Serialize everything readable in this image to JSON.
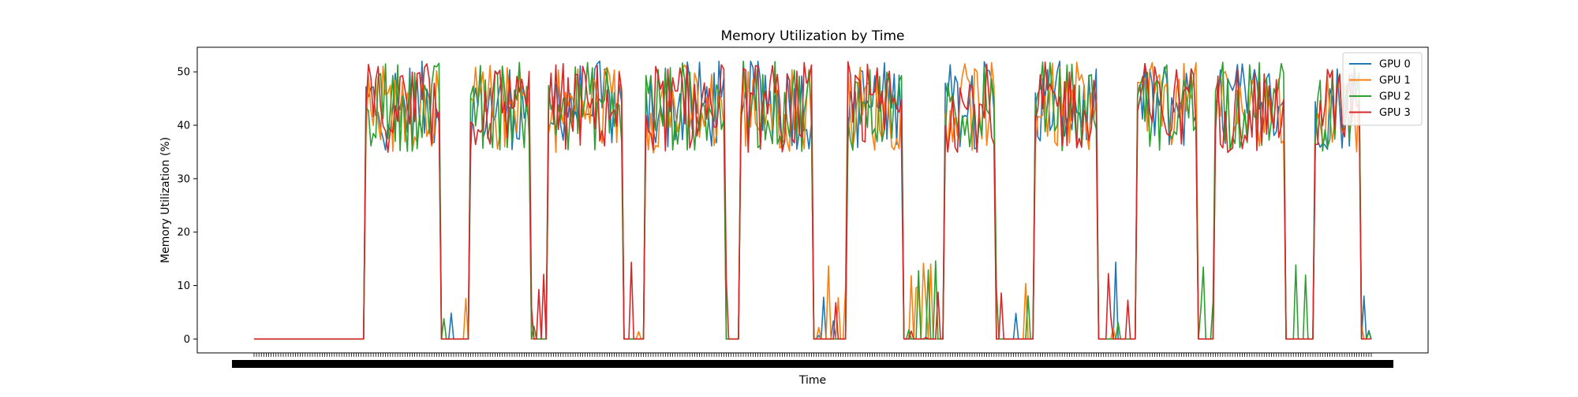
{
  "chart_data": {
    "type": "line",
    "title": "Memory Utilization by Time",
    "xlabel": "Time",
    "ylabel": "Memory Utilization (%)",
    "ylim": [
      -2.6,
      54.6
    ],
    "yticks": [
      0,
      10,
      20,
      30,
      40,
      50
    ],
    "xtick_count": 460,
    "xtick_labels_note": "dense unreadable timestamp labels",
    "grid": false,
    "legend_position": "top-right",
    "series": [
      {
        "name": "GPU 0",
        "color": "#1f77b4",
        "segments": [
          [
            0,
            48,
            "zero"
          ],
          [
            48,
            56,
            "busy"
          ],
          [
            56,
            67,
            "noise"
          ],
          [
            67,
            73,
            "zero"
          ],
          [
            73,
            84,
            "busy"
          ],
          [
            84,
            97,
            "noise"
          ],
          [
            97,
            103,
            "zero"
          ],
          [
            103,
            117,
            "busy"
          ],
          [
            117,
            130,
            "noise"
          ],
          [
            130,
            137,
            "zero"
          ],
          [
            137,
            153,
            "busy"
          ],
          [
            153,
            173,
            "noise"
          ],
          [
            173,
            183,
            "zero"
          ],
          [
            183,
            200,
            "busy"
          ],
          [
            200,
            213,
            "noise"
          ],
          [
            213,
            220,
            "zero"
          ],
          [
            220,
            238,
            "busy"
          ],
          [
            238,
            248,
            "noise"
          ],
          [
            248,
            257,
            "zero"
          ],
          [
            257,
            278,
            "busy"
          ],
          [
            278,
            292,
            "noise"
          ],
          [
            292,
            298,
            "zero"
          ],
          [
            298,
            316,
            "busy"
          ],
          [
            316,
            327,
            "noise"
          ],
          [
            327,
            335,
            "zero"
          ],
          [
            335,
            356,
            "busy"
          ],
          [
            356,
            380,
            "noise"
          ],
          [
            380,
            387,
            "zero"
          ],
          [
            387,
            404,
            "busy"
          ],
          [
            404,
            425,
            "noise"
          ],
          [
            425,
            433,
            "zero"
          ],
          [
            433,
            443,
            "busy"
          ],
          [
            443,
            460,
            "noise"
          ]
        ]
      },
      {
        "name": "GPU 1",
        "color": "#ff7f0e",
        "segments": [
          [
            0,
            48,
            "zero"
          ],
          [
            48,
            56,
            "busy"
          ],
          [
            56,
            67,
            "noise"
          ],
          [
            67,
            73,
            "zero"
          ],
          [
            73,
            84,
            "busy"
          ],
          [
            84,
            97,
            "noise"
          ],
          [
            97,
            103,
            "zero"
          ],
          [
            103,
            117,
            "busy"
          ],
          [
            117,
            130,
            "noise"
          ],
          [
            130,
            137,
            "zero"
          ],
          [
            137,
            153,
            "busy"
          ],
          [
            153,
            173,
            "noise"
          ],
          [
            173,
            183,
            "zero"
          ],
          [
            183,
            200,
            "busy"
          ],
          [
            200,
            213,
            "noise"
          ],
          [
            213,
            220,
            "zero"
          ],
          [
            220,
            238,
            "busy"
          ],
          [
            238,
            248,
            "noise"
          ],
          [
            248,
            257,
            "zero"
          ],
          [
            257,
            278,
            "busy"
          ],
          [
            278,
            292,
            "noise"
          ],
          [
            292,
            298,
            "zero"
          ],
          [
            298,
            316,
            "busy"
          ],
          [
            316,
            327,
            "noise"
          ],
          [
            327,
            335,
            "zero"
          ],
          [
            335,
            356,
            "busy"
          ],
          [
            356,
            380,
            "noise"
          ],
          [
            380,
            387,
            "zero"
          ],
          [
            387,
            404,
            "busy"
          ],
          [
            404,
            425,
            "noise"
          ],
          [
            425,
            433,
            "zero"
          ],
          [
            433,
            443,
            "busy"
          ],
          [
            443,
            460,
            "noise"
          ]
        ]
      },
      {
        "name": "GPU 2",
        "color": "#2ca02c",
        "segments": [
          [
            0,
            48,
            "zero"
          ],
          [
            48,
            56,
            "busy"
          ],
          [
            56,
            67,
            "noise"
          ],
          [
            67,
            73,
            "zero"
          ],
          [
            73,
            84,
            "busy"
          ],
          [
            84,
            97,
            "noise"
          ],
          [
            97,
            103,
            "zero"
          ],
          [
            103,
            117,
            "busy"
          ],
          [
            117,
            130,
            "noise"
          ],
          [
            130,
            137,
            "zero"
          ],
          [
            137,
            153,
            "busy"
          ],
          [
            153,
            173,
            "noise"
          ],
          [
            173,
            183,
            "zero"
          ],
          [
            183,
            200,
            "busy"
          ],
          [
            200,
            213,
            "noise"
          ],
          [
            213,
            220,
            "zero"
          ],
          [
            220,
            238,
            "busy"
          ],
          [
            238,
            248,
            "noise"
          ],
          [
            248,
            257,
            "zero"
          ],
          [
            257,
            278,
            "busy"
          ],
          [
            278,
            292,
            "noise"
          ],
          [
            292,
            298,
            "zero"
          ],
          [
            298,
            316,
            "busy"
          ],
          [
            316,
            327,
            "noise"
          ],
          [
            327,
            335,
            "zero"
          ],
          [
            335,
            356,
            "busy"
          ],
          [
            356,
            380,
            "noise"
          ],
          [
            380,
            387,
            "zero"
          ],
          [
            387,
            404,
            "busy"
          ],
          [
            404,
            425,
            "noise"
          ],
          [
            425,
            433,
            "zero"
          ],
          [
            433,
            443,
            "busy"
          ],
          [
            443,
            460,
            "noise"
          ]
        ]
      },
      {
        "name": "GPU 3",
        "color": "#d62728",
        "segments": [
          [
            0,
            48,
            "zero"
          ],
          [
            48,
            56,
            "busy"
          ],
          [
            56,
            67,
            "noise"
          ],
          [
            67,
            73,
            "zero"
          ],
          [
            73,
            84,
            "busy"
          ],
          [
            84,
            97,
            "noise"
          ],
          [
            97,
            103,
            "zero"
          ],
          [
            103,
            117,
            "busy"
          ],
          [
            117,
            130,
            "noise"
          ],
          [
            130,
            137,
            "zero"
          ],
          [
            137,
            153,
            "busy"
          ],
          [
            153,
            173,
            "noise"
          ],
          [
            173,
            183,
            "zero"
          ],
          [
            183,
            200,
            "busy"
          ],
          [
            200,
            213,
            "noise"
          ],
          [
            213,
            220,
            "zero"
          ],
          [
            220,
            238,
            "busy"
          ],
          [
            238,
            248,
            "noise"
          ],
          [
            248,
            257,
            "zero"
          ],
          [
            257,
            278,
            "busy"
          ],
          [
            278,
            292,
            "noise"
          ],
          [
            292,
            298,
            "zero"
          ],
          [
            298,
            316,
            "busy"
          ],
          [
            316,
            327,
            "noise"
          ],
          [
            327,
            335,
            "zero"
          ],
          [
            335,
            356,
            "busy"
          ],
          [
            356,
            380,
            "noise"
          ],
          [
            380,
            387,
            "zero"
          ],
          [
            387,
            404,
            "busy"
          ],
          [
            404,
            425,
            "noise"
          ],
          [
            425,
            433,
            "zero"
          ],
          [
            433,
            443,
            "busy"
          ],
          [
            443,
            460,
            "noise"
          ]
        ]
      }
    ]
  }
}
